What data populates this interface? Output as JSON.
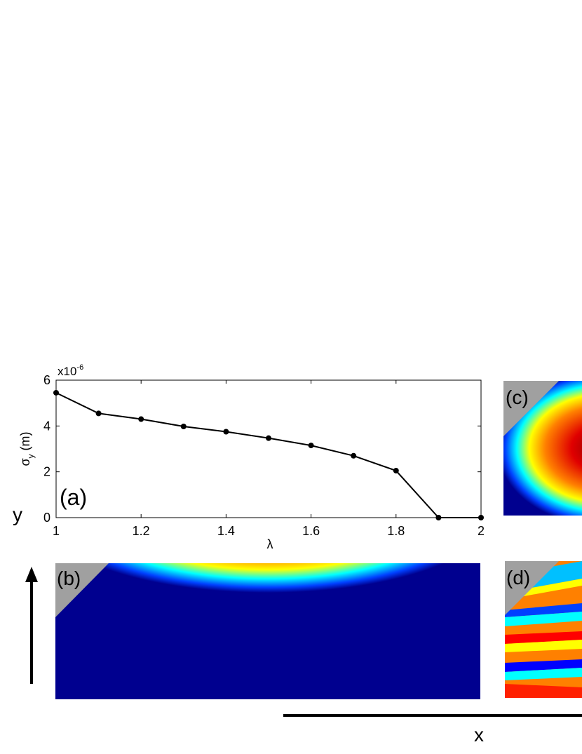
{
  "chart_data": {
    "type": "line",
    "label": "(a)",
    "xlabel": "λ",
    "ylabel": {
      "symbol": "σ",
      "subscript": "y",
      "unit": "(m)"
    },
    "y_scale_label": {
      "base": "x10",
      "exponent": "-6"
    },
    "x": [
      1,
      1.1,
      1.2,
      1.3,
      1.4,
      1.5,
      1.6,
      1.7,
      1.8,
      1.9,
      2
    ],
    "series": [
      {
        "color": "#000000",
        "values": [
          5.45,
          4.55,
          4.3,
          3.98,
          3.75,
          3.47,
          3.15,
          2.7,
          2.05,
          0,
          0
        ]
      }
    ],
    "xlim": [
      1,
      2
    ],
    "xticks": [
      1,
      1.2,
      1.4,
      1.6,
      1.8,
      2
    ],
    "ylim": [
      0,
      6
    ],
    "yticks": [
      0,
      2,
      4,
      6
    ]
  },
  "panels": {
    "b": "(b)",
    "c": "(c)",
    "d": "(d)"
  },
  "axes_arrows": {
    "y": "y",
    "x": "x"
  }
}
